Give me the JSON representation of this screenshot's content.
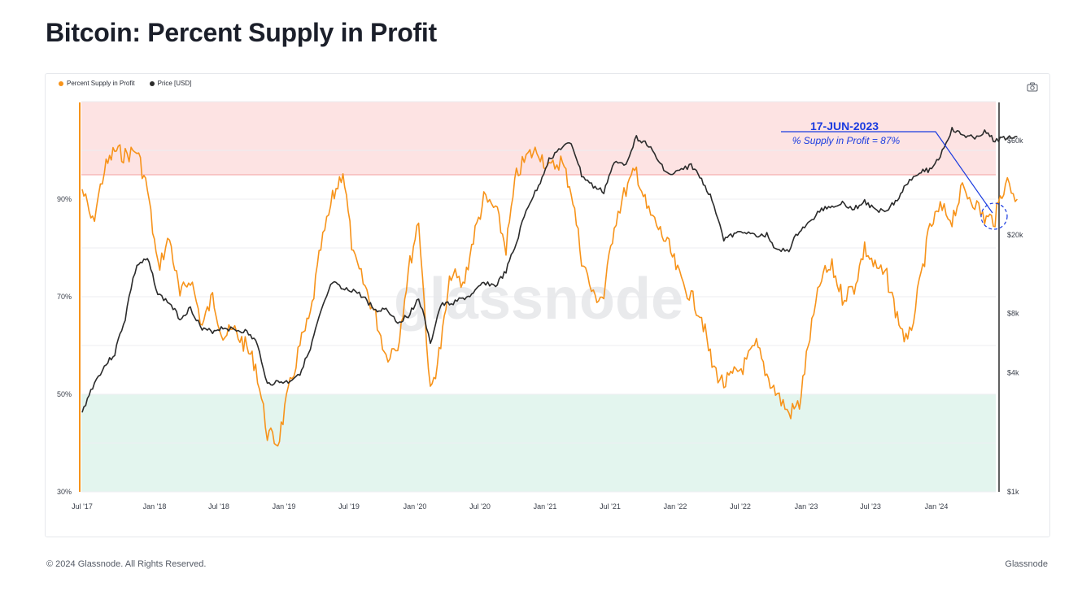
{
  "page": {
    "title": "Bitcoin: Percent Supply in Profit",
    "copyright": "© 2024 Glassnode. All Rights Reserved.",
    "brand": "Glassnode",
    "watermark": "glassnode"
  },
  "legend": [
    {
      "label": "Percent Supply in Profit",
      "color": "#f7931a"
    },
    {
      "label": "Price [USD]",
      "color": "#2b2b2b"
    }
  ],
  "annotation": {
    "date": "17-JUN-2023",
    "text": "% Supply in Profit = 87%",
    "color": "#1a3be0"
  },
  "chart_data": {
    "type": "line",
    "title": "Bitcoin: Percent Supply in Profit",
    "x_ticks": [
      "Jul '17",
      "Jan '18",
      "Jul '18",
      "Jan '19",
      "Jul '19",
      "Jan '20",
      "Jul '20",
      "Jan '21",
      "Jul '21",
      "Jan '22",
      "Jul '22",
      "Jan '23",
      "Jul '23",
      "Jan '24"
    ],
    "y_left": {
      "ticks": [
        "30%",
        "50%",
        "70%",
        "90%"
      ],
      "range": [
        30,
        110
      ]
    },
    "y_right": {
      "ticks": [
        "$1k",
        "$4k",
        "$8k",
        "$20k",
        "$60k"
      ],
      "scale": "log",
      "range": [
        1000,
        100000
      ]
    },
    "bands": [
      {
        "name": "high",
        "from": 95,
        "to": 110,
        "color": "#fde3e3"
      },
      {
        "name": "low",
        "from": 30,
        "to": 50,
        "color": "#e3f5ee"
      }
    ],
    "grid": true,
    "series": [
      {
        "name": "Percent Supply in Profit",
        "axis": "left",
        "color": "#f7931a",
        "x": [
          2017.5,
          2017.58,
          2017.67,
          2017.75,
          2017.83,
          2017.92,
          2018.0,
          2018.08,
          2018.17,
          2018.25,
          2018.33,
          2018.42,
          2018.5,
          2018.58,
          2018.67,
          2018.75,
          2018.83,
          2018.92,
          2019.0,
          2019.08,
          2019.17,
          2019.25,
          2019.33,
          2019.42,
          2019.5,
          2019.58,
          2019.67,
          2019.75,
          2019.83,
          2019.92,
          2020.0,
          2020.08,
          2020.17,
          2020.25,
          2020.33,
          2020.42,
          2020.5,
          2020.58,
          2020.67,
          2020.75,
          2020.83,
          2020.92,
          2021.0,
          2021.08,
          2021.17,
          2021.25,
          2021.33,
          2021.42,
          2021.5,
          2021.58,
          2021.67,
          2021.75,
          2021.83,
          2021.92,
          2022.0,
          2022.08,
          2022.17,
          2022.25,
          2022.33,
          2022.42,
          2022.5,
          2022.58,
          2022.67,
          2022.75,
          2022.83,
          2022.92,
          2023.0,
          2023.08,
          2023.17,
          2023.25,
          2023.33,
          2023.42,
          2023.5,
          2023.58,
          2023.67,
          2023.75,
          2023.83,
          2023.92,
          2024.0,
          2024.08,
          2024.17,
          2024.25,
          2024.33,
          2024.42,
          2024.5,
          2024.58,
          2024.67
        ],
        "y": [
          92,
          85,
          96,
          100,
          99,
          100,
          92,
          76,
          82,
          70,
          74,
          64,
          70,
          62,
          63,
          60,
          56,
          42,
          40,
          50,
          60,
          66,
          80,
          90,
          96,
          78,
          72,
          66,
          58,
          60,
          75,
          86,
          50,
          60,
          75,
          72,
          82,
          90,
          88,
          80,
          95,
          99,
          100,
          96,
          98,
          92,
          78,
          70,
          70,
          85,
          92,
          96,
          88,
          84,
          80,
          74,
          70,
          66,
          56,
          52,
          54,
          56,
          60,
          54,
          50,
          46,
          48,
          62,
          74,
          76,
          70,
          72,
          80,
          76,
          74,
          66,
          60,
          72,
          84,
          88,
          86,
          92,
          90,
          86,
          86,
          94,
          90
        ]
      },
      {
        "name": "Price [USD]",
        "axis": "right",
        "color": "#2b2b2b",
        "x": [
          2017.5,
          2017.58,
          2017.67,
          2017.75,
          2017.83,
          2017.92,
          2018.0,
          2018.08,
          2018.17,
          2018.25,
          2018.33,
          2018.42,
          2018.5,
          2018.58,
          2018.67,
          2018.75,
          2018.83,
          2018.92,
          2019.0,
          2019.08,
          2019.17,
          2019.25,
          2019.33,
          2019.42,
          2019.5,
          2019.58,
          2019.67,
          2019.75,
          2019.83,
          2019.92,
          2020.0,
          2020.08,
          2020.17,
          2020.25,
          2020.33,
          2020.42,
          2020.5,
          2020.58,
          2020.67,
          2020.75,
          2020.83,
          2020.92,
          2021.0,
          2021.08,
          2021.17,
          2021.25,
          2021.33,
          2021.42,
          2021.5,
          2021.58,
          2021.67,
          2021.75,
          2021.83,
          2021.92,
          2022.0,
          2022.08,
          2022.17,
          2022.25,
          2022.33,
          2022.42,
          2022.5,
          2022.58,
          2022.67,
          2022.75,
          2022.83,
          2022.92,
          2023.0,
          2023.08,
          2023.17,
          2023.25,
          2023.33,
          2023.42,
          2023.5,
          2023.58,
          2023.67,
          2023.75,
          2023.83,
          2023.92,
          2024.0,
          2024.08,
          2024.17,
          2024.25,
          2024.33,
          2024.42,
          2024.5,
          2024.58,
          2024.67
        ],
        "y": [
          2500,
          3400,
          4300,
          5000,
          7500,
          14000,
          15000,
          10000,
          9000,
          7500,
          8500,
          6600,
          6500,
          6800,
          6600,
          6500,
          5800,
          3500,
          3600,
          3600,
          4000,
          5200,
          8000,
          11500,
          10500,
          10500,
          9500,
          8200,
          8500,
          7200,
          7800,
          9500,
          5500,
          8800,
          9000,
          9500,
          10000,
          11500,
          11000,
          13000,
          18000,
          28000,
          35000,
          48000,
          55000,
          58000,
          40000,
          35000,
          33000,
          46000,
          46000,
          62000,
          58000,
          47000,
          40000,
          42000,
          45000,
          38000,
          30000,
          19000,
          20000,
          21000,
          19500,
          20000,
          16500,
          16800,
          21000,
          23000,
          27000,
          28000,
          29000,
          27000,
          29500,
          26500,
          27000,
          30000,
          37000,
          42000,
          42500,
          50000,
          68000,
          64000,
          62000,
          66000,
          60000,
          62000,
          63000
        ]
      }
    ]
  }
}
